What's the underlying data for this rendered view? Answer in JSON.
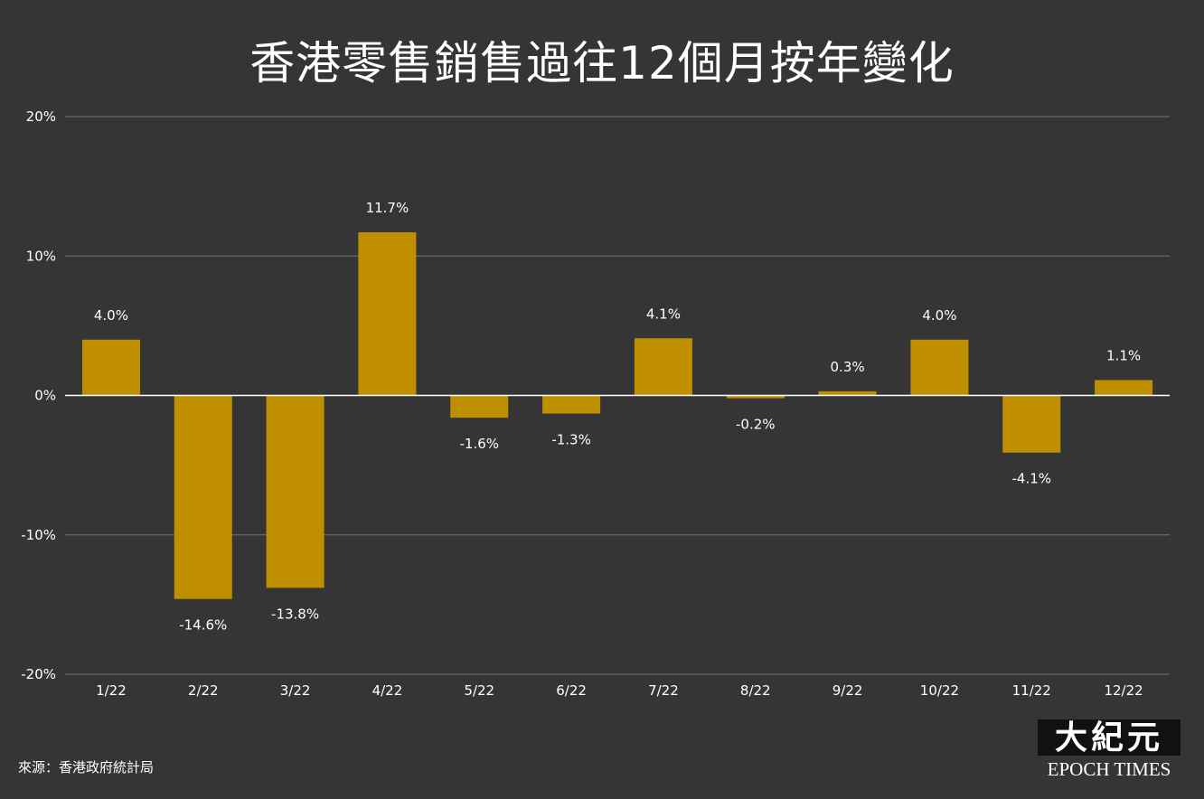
{
  "chart_data": {
    "type": "bar",
    "title": "香港零售銷售過往12個月按年變化",
    "categories": [
      "1/22",
      "2/22",
      "3/22",
      "4/22",
      "5/22",
      "6/22",
      "7/22",
      "8/22",
      "9/22",
      "10/22",
      "11/22",
      "12/22"
    ],
    "values": [
      4.0,
      -14.6,
      -13.8,
      11.7,
      -1.6,
      -1.3,
      4.1,
      -0.2,
      0.3,
      4.0,
      -4.1,
      1.1
    ],
    "data_labels": [
      "4.0%",
      "-14.6%",
      "-13.8%",
      "11.7%",
      "-1.6%",
      "-1.3%",
      "4.1%",
      "-0.2%",
      "0.3%",
      "4.0%",
      "-4.1%",
      "1.1%"
    ],
    "yticks": [
      20,
      10,
      0,
      -10,
      -20
    ],
    "ytick_labels": [
      "20%",
      "10%",
      "0%",
      "-10%",
      "-20%"
    ],
    "ylim": [
      -20,
      20
    ],
    "grid": true,
    "bar_color": "#bf8f00",
    "grid_color": "#6a6a6a",
    "zero_line_color": "#ffffff"
  },
  "source": "來源：香港政府統計局",
  "logo": {
    "chinese": "大紀元",
    "english": "EPOCH TIMES"
  },
  "colors": {
    "background": "#353535",
    "text": "#ffffff"
  }
}
